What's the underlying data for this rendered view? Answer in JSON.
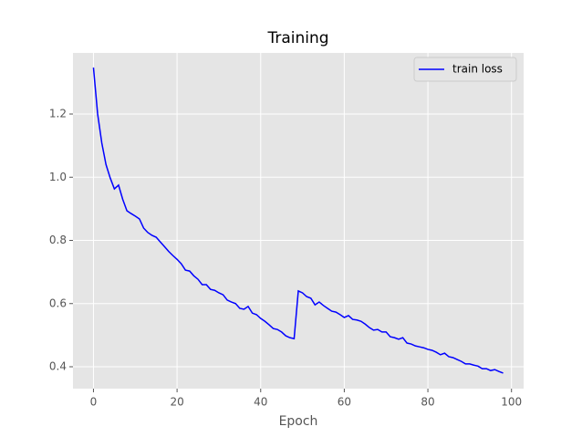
{
  "chart_data": {
    "type": "line",
    "title": "Training",
    "xlabel": "Epoch",
    "x": [
      0,
      1,
      2,
      3,
      4,
      5,
      6,
      7,
      8,
      9,
      10,
      11,
      12,
      13,
      14,
      15,
      16,
      17,
      18,
      19,
      20,
      21,
      22,
      23,
      24,
      25,
      26,
      27,
      28,
      29,
      30,
      31,
      32,
      33,
      34,
      35,
      36,
      37,
      38,
      39,
      40,
      41,
      42,
      43,
      44,
      45,
      46,
      47,
      48,
      49,
      50,
      51,
      52,
      53,
      54,
      55,
      56,
      57,
      58,
      59,
      60,
      61,
      62,
      63,
      64,
      65,
      66,
      67,
      68,
      69,
      70,
      71,
      72,
      73,
      74,
      75,
      76,
      77,
      78,
      79,
      80,
      81,
      82,
      83,
      84,
      85,
      86,
      87,
      88,
      89,
      90,
      91,
      92,
      93,
      94,
      95,
      96,
      97,
      98
    ],
    "series": [
      {
        "name": "train loss",
        "color": "#0000ff",
        "values": [
          1.347,
          1.2,
          1.108,
          1.04,
          0.998,
          0.963,
          0.975,
          0.93,
          0.894,
          0.885,
          0.877,
          0.868,
          0.839,
          0.825,
          0.816,
          0.81,
          0.795,
          0.78,
          0.765,
          0.752,
          0.74,
          0.726,
          0.706,
          0.703,
          0.688,
          0.677,
          0.66,
          0.66,
          0.645,
          0.642,
          0.634,
          0.628,
          0.611,
          0.605,
          0.6,
          0.585,
          0.582,
          0.591,
          0.57,
          0.565,
          0.553,
          0.544,
          0.533,
          0.521,
          0.518,
          0.51,
          0.498,
          0.492,
          0.489,
          0.64,
          0.634,
          0.622,
          0.617,
          0.596,
          0.605,
          0.594,
          0.585,
          0.576,
          0.573,
          0.565,
          0.556,
          0.562,
          0.55,
          0.548,
          0.544,
          0.535,
          0.524,
          0.516,
          0.518,
          0.51,
          0.51,
          0.495,
          0.492,
          0.487,
          0.492,
          0.475,
          0.472,
          0.466,
          0.463,
          0.46,
          0.455,
          0.452,
          0.446,
          0.438,
          0.443,
          0.432,
          0.429,
          0.423,
          0.417,
          0.409,
          0.409,
          0.405,
          0.402,
          0.394,
          0.394,
          0.388,
          0.391,
          0.385,
          0.38
        ]
      }
    ],
    "xlim": [
      -4.9,
      102.9
    ],
    "ylim": [
      0.3307,
      1.3935
    ],
    "xticks": [
      0,
      20,
      40,
      60,
      80,
      100
    ],
    "yticks": [
      0.4,
      0.6,
      0.8,
      {
        "value": 1,
        "label": "1.0"
      },
      1.2
    ],
    "grid": true,
    "legend": "upper right"
  }
}
